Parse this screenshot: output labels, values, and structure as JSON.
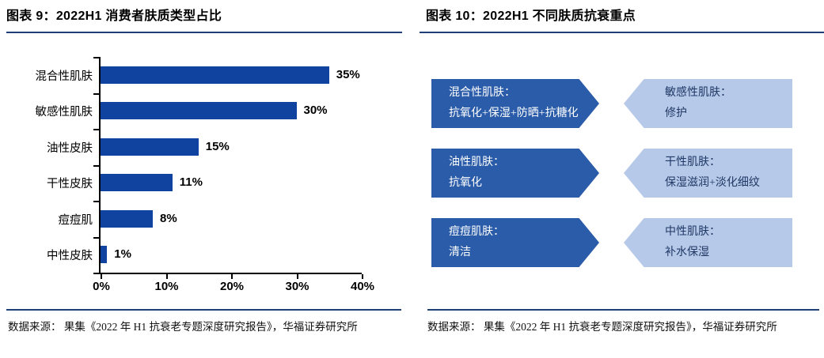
{
  "figure9": {
    "title": "图表 9：2022H1 消费者肤质类型占比",
    "source": "数据来源： 果集《2022 年 H1 抗衰老专题深度研究报告》，华福证券研究所"
  },
  "chart_data": {
    "type": "bar",
    "orientation": "horizontal",
    "title": "2022H1 消费者肤质类型占比",
    "categories": [
      "混合性肌肤",
      "敏感性肌肤",
      "油性皮肤",
      "干性皮肤",
      "痘痘肌",
      "中性皮肤"
    ],
    "values": [
      35,
      30,
      15,
      11,
      8,
      1
    ],
    "value_labels": [
      "35%",
      "30%",
      "15%",
      "11%",
      "8%",
      "1%"
    ],
    "xlabel": "",
    "ylabel": "",
    "xlim": [
      0,
      40
    ],
    "x_ticks": [
      "0%",
      "10%",
      "20%",
      "30%",
      "40%"
    ],
    "x_tick_values": [
      0,
      10,
      20,
      30,
      40
    ],
    "grid": false,
    "legend": "none",
    "bar_color": "#10429F"
  },
  "figure10": {
    "title": "图表 10：2022H1 不同肤质抗衰重点",
    "source": "数据来源： 果集《2022 年 H1 抗衰老专题深度研究报告》，华福证券研究所",
    "rows": [
      {
        "left": {
          "name": "混合性肌肤：",
          "focus": "抗氧化+保湿+防晒+抗糖化"
        },
        "right": {
          "name": "敏感性肌肤：",
          "focus": "修护"
        }
      },
      {
        "left": {
          "name": "油性肌肤：",
          "focus": "抗氧化"
        },
        "right": {
          "name": "干性肌肤：",
          "focus": "保湿滋润+淡化细纹"
        }
      },
      {
        "left": {
          "name": "痘痘肌肤：",
          "focus": "清洁"
        },
        "right": {
          "name": "中性肌肤：",
          "focus": "补水保湿"
        }
      }
    ]
  },
  "colors": {
    "bar": "#10429F",
    "rule": "#1F4077",
    "dark_arrow": "#2B5CA9",
    "light_arrow": "#B6C9E9",
    "light_arrow_text": "#1F3864",
    "axis": "#000000"
  }
}
